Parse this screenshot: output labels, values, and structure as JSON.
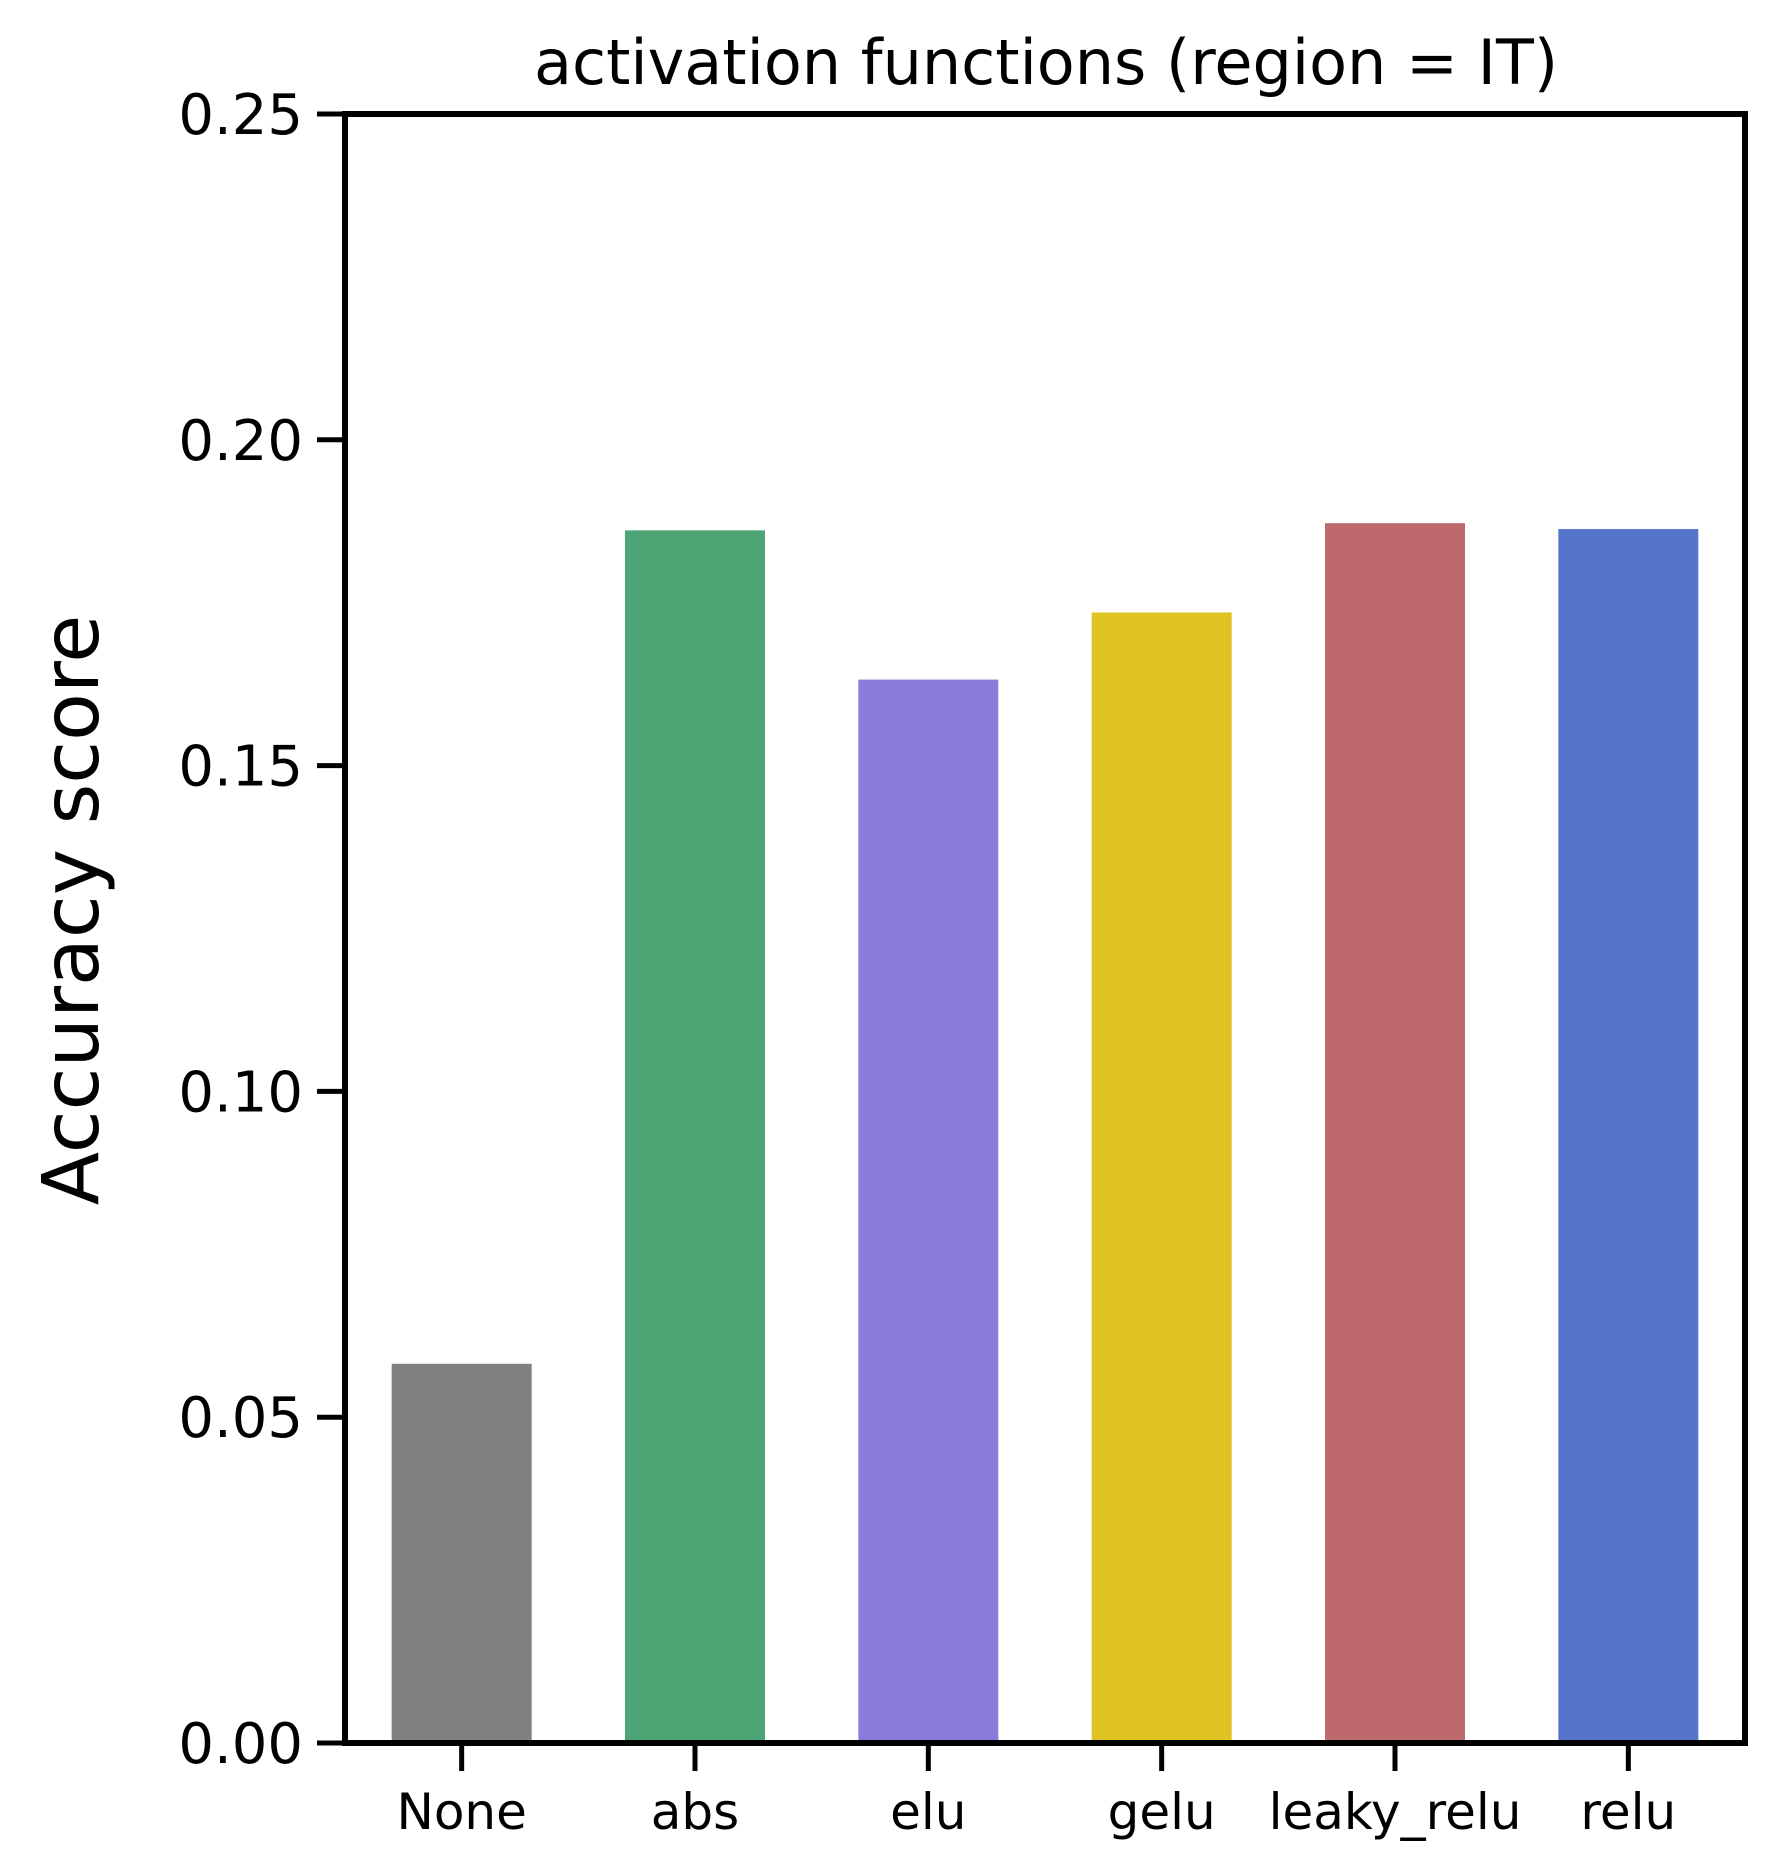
{
  "chart_data": {
    "type": "bar",
    "title": "activation functions (region = IT)",
    "xlabel": "",
    "ylabel": "Accuracy score",
    "categories": [
      "None",
      "abs",
      "elu",
      "gelu",
      "leaky_relu",
      "relu"
    ],
    "values": [
      0.0582,
      0.1861,
      0.1632,
      0.1735,
      0.1872,
      0.1863
    ],
    "colors": [
      "#808080",
      "#4da474",
      "#897bdc",
      "#dec323",
      "#be696c",
      "#5674ca"
    ],
    "ylim": [
      0,
      0.25
    ],
    "yticks": [
      0.0,
      0.05,
      0.1,
      0.15,
      0.2,
      0.25
    ],
    "ytick_labels": [
      "0.00",
      "0.05",
      "0.10",
      "0.15",
      "0.20",
      "0.25"
    ],
    "grid": false,
    "legend": "none"
  }
}
